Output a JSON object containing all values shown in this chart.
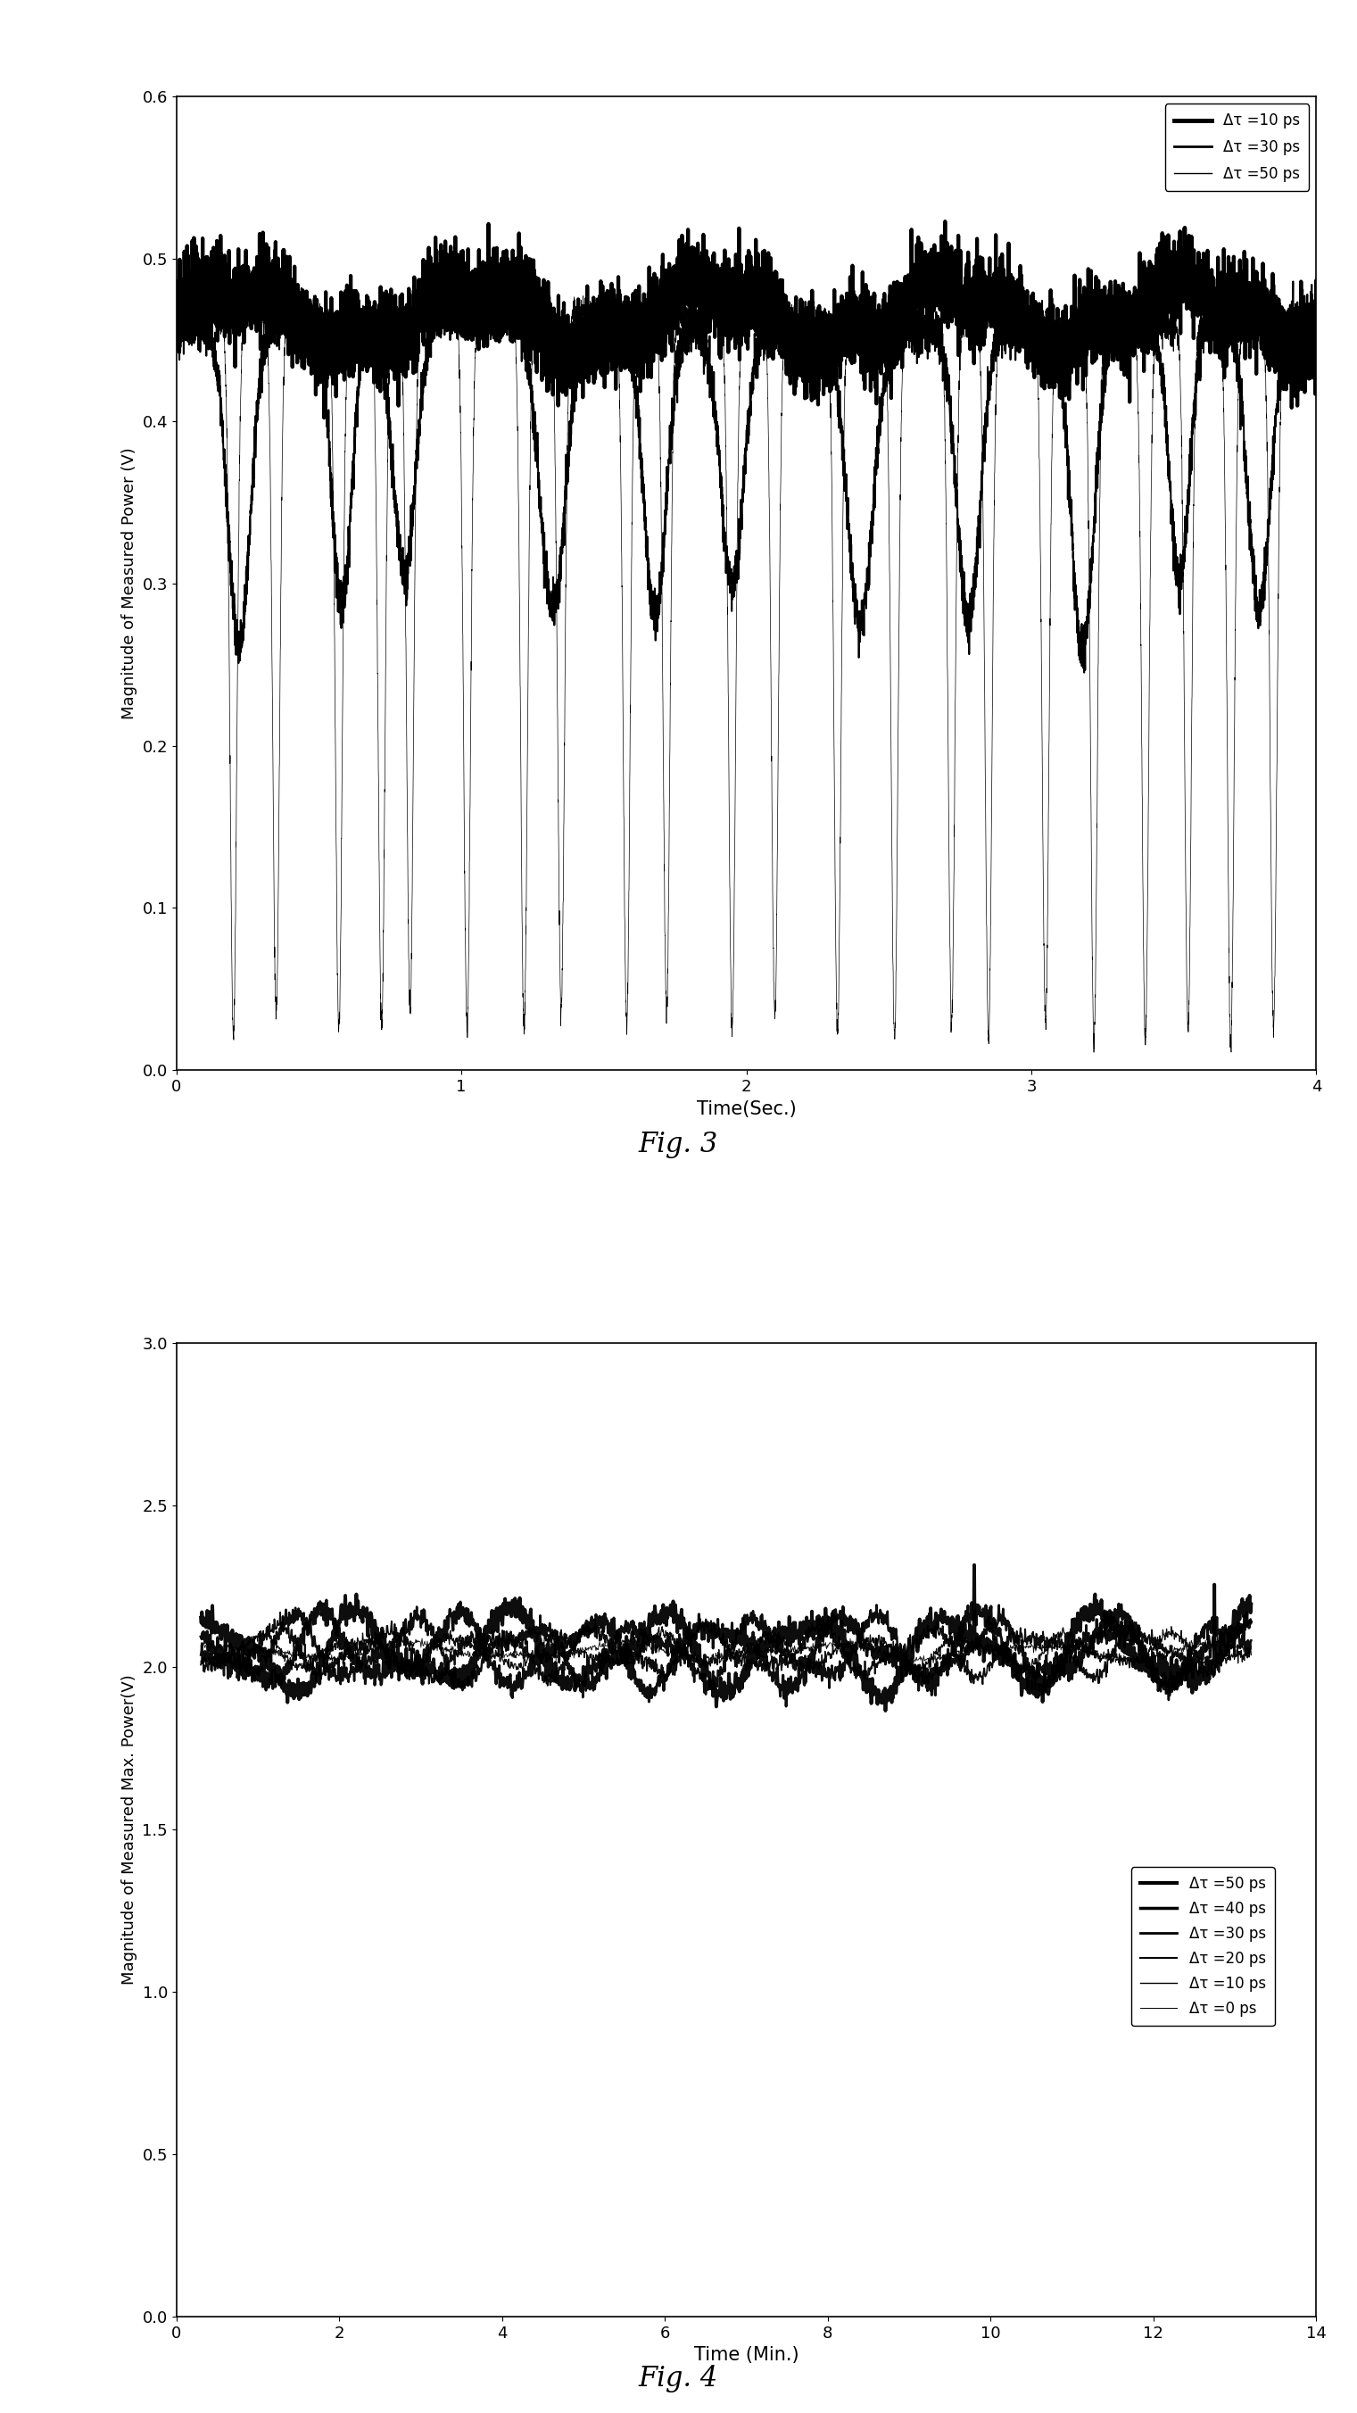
{
  "fig3": {
    "title": "Fig. 3",
    "xlabel": "Time(Sec.)",
    "ylabel": "Magnitude of Measured Power (V)",
    "xlim": [
      0,
      4
    ],
    "ylim": [
      0,
      0.6
    ],
    "xticks": [
      0,
      1,
      2,
      3,
      4
    ],
    "yticks": [
      0,
      0.1,
      0.2,
      0.3,
      0.4,
      0.5,
      0.6
    ],
    "legend_labels": [
      "Δτ =10 ps",
      "Δτ =30 ps",
      "Δτ =50 ps"
    ],
    "legend_lw": [
      3.5,
      2.0,
      1.0
    ]
  },
  "fig4": {
    "title": "Fig. 4",
    "xlabel": "Time (Min.)",
    "ylabel": "Magnitude of Measured Max. Power(V)",
    "xlim": [
      0,
      14
    ],
    "ylim": [
      0,
      3
    ],
    "xticks": [
      0,
      2,
      4,
      6,
      8,
      10,
      12,
      14
    ],
    "yticks": [
      0,
      0.5,
      1,
      1.5,
      2,
      2.5,
      3
    ],
    "legend_labels": [
      "Δτ =50 ps",
      "Δτ =40 ps",
      "Δτ =30 ps",
      "Δτ =20 ps",
      "Δτ =10 ps",
      "Δτ =0 ps"
    ],
    "legend_lw": [
      3.0,
      2.5,
      2.0,
      1.5,
      1.0,
      0.7
    ]
  }
}
